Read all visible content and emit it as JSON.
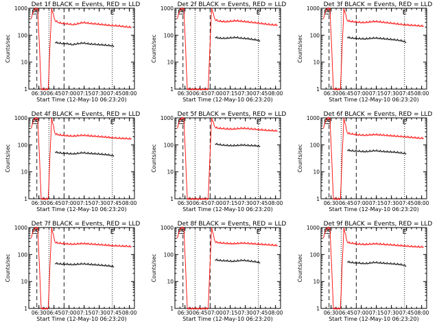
{
  "chart_data": [
    {
      "type": "line",
      "title": "Det 1f BLACK = Events, RED = LLD",
      "xlabel": "Start Time (12-May-10 06:23:20)",
      "ylabel": "Counts/sec",
      "yscale": "log",
      "ylim": [
        1,
        1000
      ],
      "x_ticks": [
        "06:30",
        "06:45",
        "07:00",
        "07:15",
        "07:30",
        "07:45",
        "08:00"
      ],
      "y_ticks": [
        "1",
        "10",
        "100",
        "1000"
      ],
      "markers": [
        {
          "label": "E",
          "time": "06:25"
        },
        {
          "label": "S",
          "time": "06:28"
        },
        {
          "label": "E",
          "time": "07:43"
        }
      ],
      "series": [
        {
          "name": "LLD",
          "color": "#ff0000",
          "values": [
            400,
            950,
            1000,
            0,
            0,
            0,
            1000,
            350,
            300,
            280,
            270,
            265,
            250,
            260,
            280,
            300,
            290,
            280,
            270,
            265,
            255,
            250,
            240,
            235,
            230,
            225,
            220,
            210,
            205,
            200
          ]
        },
        {
          "name": "Events",
          "color": "#000000",
          "values": [
            null,
            null,
            null,
            null,
            null,
            null,
            null,
            55,
            52,
            50,
            50,
            48,
            45,
            48,
            50,
            52,
            50,
            48,
            47,
            46,
            45,
            44,
            43,
            42,
            40,
            null,
            null,
            null,
            null,
            null
          ]
        }
      ]
    },
    {
      "type": "line",
      "title": "Det 2f BLACK = Events, RED = LLD",
      "xlabel": "Start Time (12-May-10 06:23:20)",
      "ylabel": "Counts/sec",
      "yscale": "log",
      "ylim": [
        1,
        1000
      ],
      "x_ticks": [
        "06:30",
        "06:45",
        "07:00",
        "07:15",
        "07:30",
        "07:45",
        "08:00"
      ],
      "y_ticks": [
        "1",
        "10",
        "100",
        "1000"
      ],
      "markers": [
        {
          "label": "E",
          "time": "06:25"
        },
        {
          "label": "S",
          "time": "06:28"
        },
        {
          "label": "E",
          "time": "07:43"
        }
      ],
      "series": [
        {
          "name": "LLD",
          "color": "#ff0000",
          "values": [
            400,
            950,
            1000,
            0,
            0,
            0,
            0,
            0,
            0,
            0,
            1000,
            380,
            340,
            330,
            320,
            330,
            340,
            350,
            340,
            330,
            320,
            310,
            300,
            290,
            280,
            270,
            260,
            250,
            245,
            240
          ]
        },
        {
          "name": "Events",
          "color": "#000000",
          "values": [
            null,
            null,
            null,
            null,
            null,
            null,
            null,
            null,
            null,
            null,
            null,
            85,
            80,
            78,
            78,
            80,
            82,
            84,
            80,
            78,
            76,
            74,
            70,
            68,
            62,
            null,
            null,
            null,
            null,
            null
          ]
        }
      ]
    },
    {
      "type": "line",
      "title": "Det 3f BLACK = Events, RED = LLD",
      "xlabel": "Start Time (12-May-10 06:23:20)",
      "ylabel": "Counts/sec",
      "yscale": "log",
      "ylim": [
        1,
        1000
      ],
      "x_ticks": [
        "06:30",
        "06:45",
        "07:00",
        "07:15",
        "07:30",
        "07:45",
        "08:00"
      ],
      "y_ticks": [
        "1",
        "10",
        "100",
        "1000"
      ],
      "markers": [
        {
          "label": "E",
          "time": "06:25"
        },
        {
          "label": "S",
          "time": "06:28"
        },
        {
          "label": "E",
          "time": "07:43"
        }
      ],
      "series": [
        {
          "name": "LLD",
          "color": "#ff0000",
          "values": [
            400,
            950,
            1000,
            0,
            0,
            0,
            1000,
            350,
            330,
            320,
            310,
            300,
            300,
            310,
            320,
            330,
            320,
            310,
            300,
            290,
            280,
            270,
            260,
            250,
            245,
            240,
            235,
            230,
            225,
            220
          ]
        },
        {
          "name": "Events",
          "color": "#000000",
          "values": [
            null,
            null,
            null,
            null,
            null,
            null,
            null,
            85,
            80,
            78,
            76,
            75,
            74,
            76,
            78,
            80,
            78,
            76,
            74,
            72,
            70,
            68,
            65,
            62,
            55,
            null,
            null,
            null,
            null,
            null
          ]
        }
      ]
    },
    {
      "type": "line",
      "title": "Det 4f BLACK = Events, RED = LLD",
      "xlabel": "Start Time (12-May-10 06:23:20)",
      "ylabel": "Counts/sec",
      "yscale": "log",
      "ylim": [
        1,
        1000
      ],
      "x_ticks": [
        "06:30",
        "06:45",
        "07:00",
        "07:15",
        "07:30",
        "07:45",
        "08:00"
      ],
      "y_ticks": [
        "1",
        "10",
        "100",
        "1000"
      ],
      "markers": [
        {
          "label": "E",
          "time": "06:25"
        },
        {
          "label": "S",
          "time": "06:28"
        },
        {
          "label": "E",
          "time": "07:43"
        }
      ],
      "series": [
        {
          "name": "LLD",
          "color": "#ff0000",
          "values": [
            400,
            950,
            1000,
            0,
            0,
            0,
            1000,
            260,
            240,
            230,
            225,
            220,
            215,
            220,
            225,
            230,
            225,
            220,
            215,
            210,
            205,
            200,
            195,
            190,
            185,
            180,
            178,
            175,
            172,
            170
          ]
        },
        {
          "name": "Events",
          "color": "#000000",
          "values": [
            null,
            null,
            null,
            null,
            null,
            null,
            null,
            55,
            52,
            50,
            50,
            48,
            47,
            48,
            50,
            52,
            50,
            49,
            48,
            47,
            46,
            45,
            44,
            42,
            40,
            null,
            null,
            null,
            null,
            null
          ]
        }
      ]
    },
    {
      "type": "line",
      "title": "Det 5f BLACK = Events, RED = LLD",
      "xlabel": "Start Time (12-May-10 06:23:20)",
      "ylabel": "Counts/sec",
      "yscale": "log",
      "ylim": [
        1,
        1000
      ],
      "x_ticks": [
        "06:30",
        "06:45",
        "07:00",
        "07:15",
        "07:30",
        "07:45",
        "08:00"
      ],
      "y_ticks": [
        "1",
        "10",
        "100",
        "1000"
      ],
      "markers": [
        {
          "label": "E",
          "time": "06:25"
        },
        {
          "label": "S",
          "time": "06:28"
        },
        {
          "label": "E",
          "time": "07:43"
        }
      ],
      "series": [
        {
          "name": "LLD",
          "color": "#ff0000",
          "values": [
            400,
            950,
            1000,
            0,
            0,
            0,
            0,
            0,
            0,
            0,
            1000,
            450,
            420,
            410,
            400,
            395,
            390,
            400,
            410,
            420,
            410,
            400,
            390,
            380,
            370,
            360,
            350,
            345,
            340,
            335
          ]
        },
        {
          "name": "Events",
          "color": "#000000",
          "values": [
            null,
            null,
            null,
            null,
            null,
            null,
            null,
            null,
            null,
            null,
            null,
            110,
            105,
            100,
            98,
            96,
            95,
            96,
            98,
            100,
            98,
            96,
            95,
            94,
            90,
            null,
            null,
            null,
            null,
            null
          ]
        }
      ]
    },
    {
      "type": "line",
      "title": "Det 6f BLACK = Events, RED = LLD",
      "xlabel": "Start Time (12-May-10 06:23:20)",
      "ylabel": "Counts/sec",
      "yscale": "log",
      "ylim": [
        1,
        1000
      ],
      "x_ticks": [
        "06:30",
        "06:45",
        "07:00",
        "07:15",
        "07:30",
        "07:45",
        "08:00"
      ],
      "y_ticks": [
        "1",
        "10",
        "100",
        "1000"
      ],
      "markers": [
        {
          "label": "E",
          "time": "06:25"
        },
        {
          "label": "S",
          "time": "06:28"
        },
        {
          "label": "E",
          "time": "07:43"
        }
      ],
      "series": [
        {
          "name": "LLD",
          "color": "#ff0000",
          "values": [
            400,
            950,
            1000,
            0,
            0,
            0,
            1000,
            280,
            260,
            250,
            240,
            235,
            230,
            235,
            240,
            245,
            240,
            235,
            230,
            225,
            220,
            215,
            210,
            205,
            200,
            195,
            190,
            185,
            180,
            178
          ]
        },
        {
          "name": "Events",
          "color": "#000000",
          "values": [
            null,
            null,
            null,
            null,
            null,
            null,
            null,
            65,
            62,
            60,
            60,
            58,
            57,
            58,
            60,
            62,
            60,
            58,
            57,
            56,
            55,
            54,
            52,
            50,
            48,
            null,
            null,
            null,
            null,
            null
          ]
        }
      ]
    },
    {
      "type": "line",
      "title": "Det 7f BLACK = Events, RED = LLD",
      "xlabel": "Start Time (12-May-10 06:23:20)",
      "ylabel": "Counts/sec",
      "yscale": "log",
      "ylim": [
        1,
        1000
      ],
      "x_ticks": [
        "06:30",
        "06:45",
        "07:00",
        "07:15",
        "07:30",
        "07:45",
        "08:00"
      ],
      "y_ticks": [
        "1",
        "10",
        "100",
        "1000"
      ],
      "markers": [
        {
          "label": "E",
          "time": "06:25"
        },
        {
          "label": "S",
          "time": "06:28"
        },
        {
          "label": "E",
          "time": "07:43"
        }
      ],
      "series": [
        {
          "name": "LLD",
          "color": "#ff0000",
          "values": [
            400,
            950,
            1000,
            0,
            0,
            0,
            1000,
            290,
            270,
            260,
            255,
            250,
            245,
            250,
            255,
            260,
            255,
            250,
            245,
            240,
            235,
            230,
            225,
            220,
            215,
            212,
            210,
            208,
            205,
            200
          ]
        },
        {
          "name": "Events",
          "color": "#000000",
          "values": [
            null,
            null,
            null,
            null,
            null,
            null,
            null,
            48,
            46,
            45,
            45,
            44,
            43,
            44,
            45,
            46,
            45,
            44,
            43,
            42,
            41,
            40,
            39,
            38,
            36,
            null,
            null,
            null,
            null,
            null
          ]
        }
      ]
    },
    {
      "type": "line",
      "title": "Det 8f BLACK = Events, RED = LLD",
      "xlabel": "Start Time (12-May-10 06:23:20)",
      "ylabel": "Counts/sec",
      "yscale": "log",
      "ylim": [
        1,
        1000
      ],
      "x_ticks": [
        "06:30",
        "06:45",
        "07:00",
        "07:15",
        "07:30",
        "07:45",
        "08:00"
      ],
      "y_ticks": [
        "1",
        "10",
        "100",
        "1000"
      ],
      "markers": [
        {
          "label": "E",
          "time": "06:25"
        },
        {
          "label": "S",
          "time": "06:28"
        },
        {
          "label": "E",
          "time": "07:43"
        }
      ],
      "series": [
        {
          "name": "LLD",
          "color": "#ff0000",
          "values": [
            400,
            950,
            1000,
            0,
            0,
            0,
            0,
            0,
            0,
            0,
            1000,
            300,
            280,
            270,
            265,
            260,
            255,
            260,
            265,
            270,
            265,
            260,
            255,
            250,
            245,
            240,
            235,
            230,
            225,
            220
          ]
        },
        {
          "name": "Events",
          "color": "#000000",
          "values": [
            null,
            null,
            null,
            null,
            null,
            null,
            null,
            null,
            null,
            null,
            null,
            65,
            62,
            60,
            60,
            58,
            57,
            58,
            60,
            62,
            60,
            58,
            56,
            54,
            50,
            null,
            null,
            null,
            null,
            null
          ]
        }
      ]
    },
    {
      "type": "line",
      "title": "Det 9f BLACK = Events, RED = LLD",
      "xlabel": "Start Time (12-May-10 06:23:20)",
      "ylabel": "Counts/sec",
      "yscale": "log",
      "ylim": [
        1,
        1000
      ],
      "x_ticks": [
        "06:30",
        "06:45",
        "07:00",
        "07:15",
        "07:30",
        "07:45",
        "08:00"
      ],
      "y_ticks": [
        "1",
        "10",
        "100",
        "1000"
      ],
      "markers": [
        {
          "label": "E",
          "time": "06:25"
        },
        {
          "label": "S",
          "time": "06:28"
        },
        {
          "label": "E",
          "time": "07:43"
        }
      ],
      "series": [
        {
          "name": "LLD",
          "color": "#ff0000",
          "values": [
            400,
            950,
            1000,
            0,
            0,
            0,
            1000,
            290,
            270,
            260,
            250,
            245,
            240,
            245,
            250,
            255,
            250,
            245,
            240,
            235,
            230,
            225,
            220,
            215,
            210,
            205,
            200,
            198,
            195,
            192
          ]
        },
        {
          "name": "Events",
          "color": "#000000",
          "values": [
            null,
            null,
            null,
            null,
            null,
            null,
            null,
            55,
            52,
            50,
            50,
            48,
            47,
            48,
            50,
            52,
            50,
            49,
            48,
            47,
            46,
            45,
            44,
            42,
            38,
            null,
            null,
            null,
            null,
            null
          ]
        }
      ]
    }
  ]
}
